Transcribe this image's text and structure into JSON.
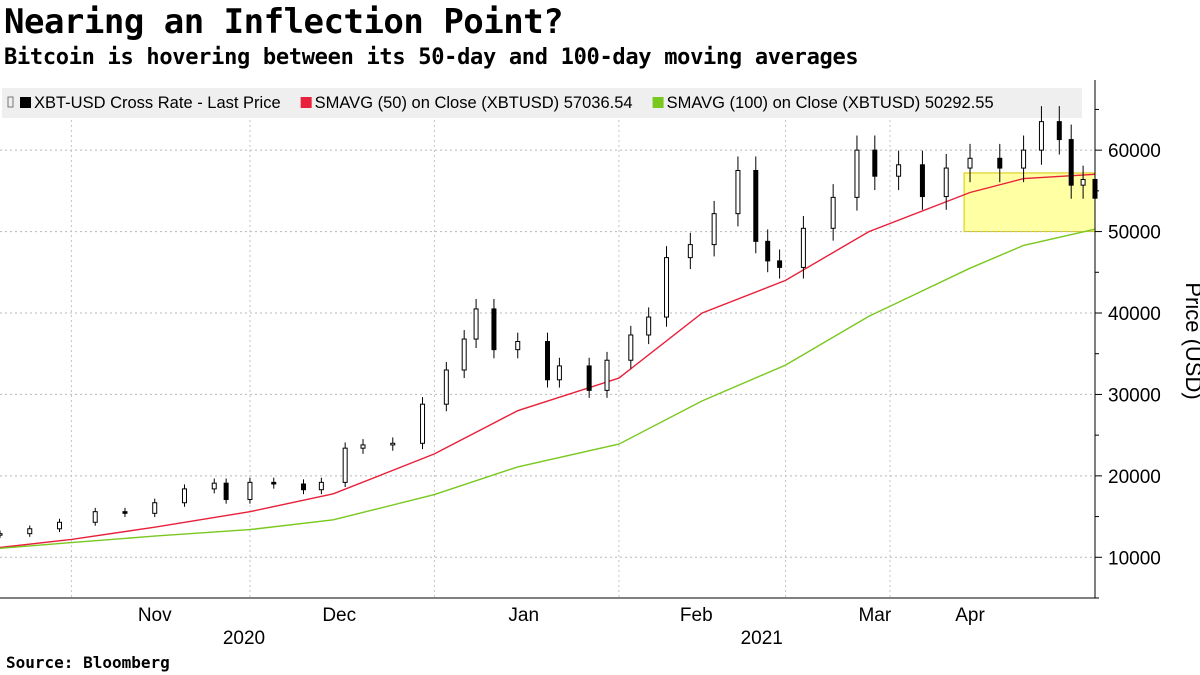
{
  "title": "Nearing an Inflection Point?",
  "subtitle": "Bitcoin is hovering between its 50-day and 100-day moving averages",
  "source": "Source: Bloomberg",
  "chart_data": {
    "type": "line",
    "ylabel": "Price (USD)",
    "ylim": [
      5000,
      68000
    ],
    "yticks": [
      10000,
      20000,
      30000,
      40000,
      50000,
      60000
    ],
    "grid": true,
    "legend_position": "top-left",
    "x_start": "2020-10-20",
    "x_end": "2021-04-22",
    "month_labels": [
      {
        "label": "Nov",
        "center": "2020-11-15",
        "boundary": "2020-11-01"
      },
      {
        "label": "Dec",
        "center": "2020-12-16",
        "boundary": "2020-12-01"
      },
      {
        "label": "Jan",
        "center": "2021-01-16",
        "boundary": "2021-01-01"
      },
      {
        "label": "Feb",
        "center": "2021-02-14",
        "boundary": "2021-02-01"
      },
      {
        "label": "Mar",
        "center": "2021-03-16",
        "boundary": "2021-03-01"
      },
      {
        "label": "Apr",
        "center": "2021-04-01",
        "boundary": "2021-04-01"
      }
    ],
    "year_labels": [
      {
        "label": "2020",
        "center": "2020-11-30"
      },
      {
        "label": "2021",
        "center": "2021-02-25"
      }
    ],
    "legend": [
      {
        "label": "XBT-USD Cross Rate - Last Price",
        "color": "#000000"
      },
      {
        "label": "SMAVG (50)  on Close (XBTUSD) 57036.54",
        "color": "#e8203a"
      },
      {
        "label": "SMAVG (100)  on Close (XBTUSD) 50292.55",
        "color": "#78c81e"
      }
    ],
    "highlight_box": {
      "x_from": "2021-03-31",
      "x_to": "2021-04-22",
      "y_from": 50000,
      "y_to": 57200,
      "color": "#ffff66"
    },
    "series": [
      {
        "name": "XBT-USD Cross Rate - Last Price",
        "style": "candlestick",
        "color": "#000000",
        "x": [
          "2020-10-20",
          "2020-10-25",
          "2020-10-30",
          "2020-11-05",
          "2020-11-10",
          "2020-11-15",
          "2020-11-20",
          "2020-11-25",
          "2020-11-27",
          "2020-12-01",
          "2020-12-05",
          "2020-12-10",
          "2020-12-13",
          "2020-12-17",
          "2020-12-20",
          "2020-12-25",
          "2020-12-30",
          "2021-01-03",
          "2021-01-06",
          "2021-01-08",
          "2021-01-11",
          "2021-01-15",
          "2021-01-20",
          "2021-01-22",
          "2021-01-27",
          "2021-01-30",
          "2021-02-03",
          "2021-02-06",
          "2021-02-09",
          "2021-02-13",
          "2021-02-17",
          "2021-02-21",
          "2021-02-24",
          "2021-02-26",
          "2021-02-28",
          "2021-03-04",
          "2021-03-09",
          "2021-03-13",
          "2021-03-16",
          "2021-03-20",
          "2021-03-24",
          "2021-03-28",
          "2021-04-01",
          "2021-04-06",
          "2021-04-10",
          "2021-04-13",
          "2021-04-16",
          "2021-04-18",
          "2021-04-20",
          "2021-04-22"
        ],
        "y": [
          12900,
          13500,
          14300,
          15600,
          15400,
          16700,
          18400,
          19100,
          17100,
          19200,
          19000,
          18300,
          19200,
          23400,
          23800,
          24000,
          28800,
          33000,
          36800,
          40500,
          35500,
          36500,
          31800,
          33500,
          30500,
          34200,
          37300,
          39500,
          46800,
          48400,
          52200,
          57500,
          48800,
          46400,
          45600,
          50400,
          54200,
          60000,
          56800,
          58200,
          54300,
          57800,
          59000,
          57800,
          60000,
          63500,
          61300,
          55700,
          56400,
          54100
        ]
      },
      {
        "name": "SMAVG (50)  on Close (XBTUSD) 57036.54",
        "style": "line",
        "color": "#e8203a",
        "x": [
          "2020-10-20",
          "2020-11-01",
          "2020-11-15",
          "2020-12-01",
          "2020-12-15",
          "2021-01-01",
          "2021-01-15",
          "2021-02-01",
          "2021-02-15",
          "2021-03-01",
          "2021-03-15",
          "2021-04-01",
          "2021-04-10",
          "2021-04-22"
        ],
        "y": [
          11200,
          12200,
          13700,
          15600,
          17800,
          22700,
          28000,
          32000,
          40000,
          44000,
          50000,
          54800,
          56500,
          57036.54
        ]
      },
      {
        "name": "SMAVG (100)  on Close (XBTUSD) 50292.55",
        "style": "line",
        "color": "#78c81e",
        "x": [
          "2020-10-20",
          "2020-11-01",
          "2020-11-15",
          "2020-12-01",
          "2020-12-15",
          "2021-01-01",
          "2021-01-15",
          "2021-02-01",
          "2021-02-15",
          "2021-03-01",
          "2021-03-15",
          "2021-04-01",
          "2021-04-10",
          "2021-04-22"
        ],
        "y": [
          11100,
          11800,
          12600,
          13400,
          14600,
          17700,
          21100,
          23900,
          29200,
          33600,
          39600,
          45500,
          48300,
          50292.55
        ]
      }
    ]
  }
}
